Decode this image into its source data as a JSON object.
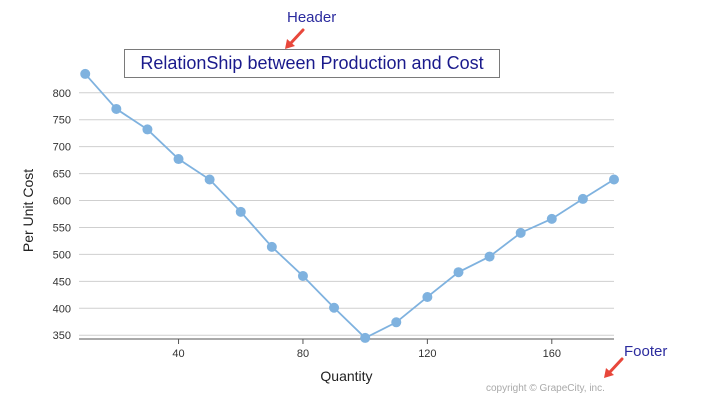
{
  "callouts": {
    "header": "Header",
    "footer": "Footer"
  },
  "chart_data": {
    "type": "line",
    "title": "RelationShip between Production and Cost",
    "footer": "copyright © GrapeCity, inc.",
    "xlabel": "Quantity",
    "ylabel": "Per Unit Cost",
    "xlim": [
      8,
      180
    ],
    "ylim": [
      343,
      820
    ],
    "x_ticks": [
      40,
      80,
      120,
      160
    ],
    "y_ticks": [
      350,
      400,
      450,
      500,
      550,
      600,
      650,
      700,
      750,
      800
    ],
    "grid": true,
    "legend": "none",
    "series": [
      {
        "color": "#7fb2df",
        "x": [
          10,
          20,
          30,
          40,
          50,
          60,
          70,
          80,
          90,
          100,
          110,
          120,
          130,
          140,
          150,
          160,
          170,
          180
        ],
        "y": [
          835,
          770,
          732,
          677,
          639,
          579,
          514,
          460,
          401,
          345,
          374,
          421,
          467,
          496,
          540,
          566,
          603,
          639
        ]
      }
    ]
  }
}
